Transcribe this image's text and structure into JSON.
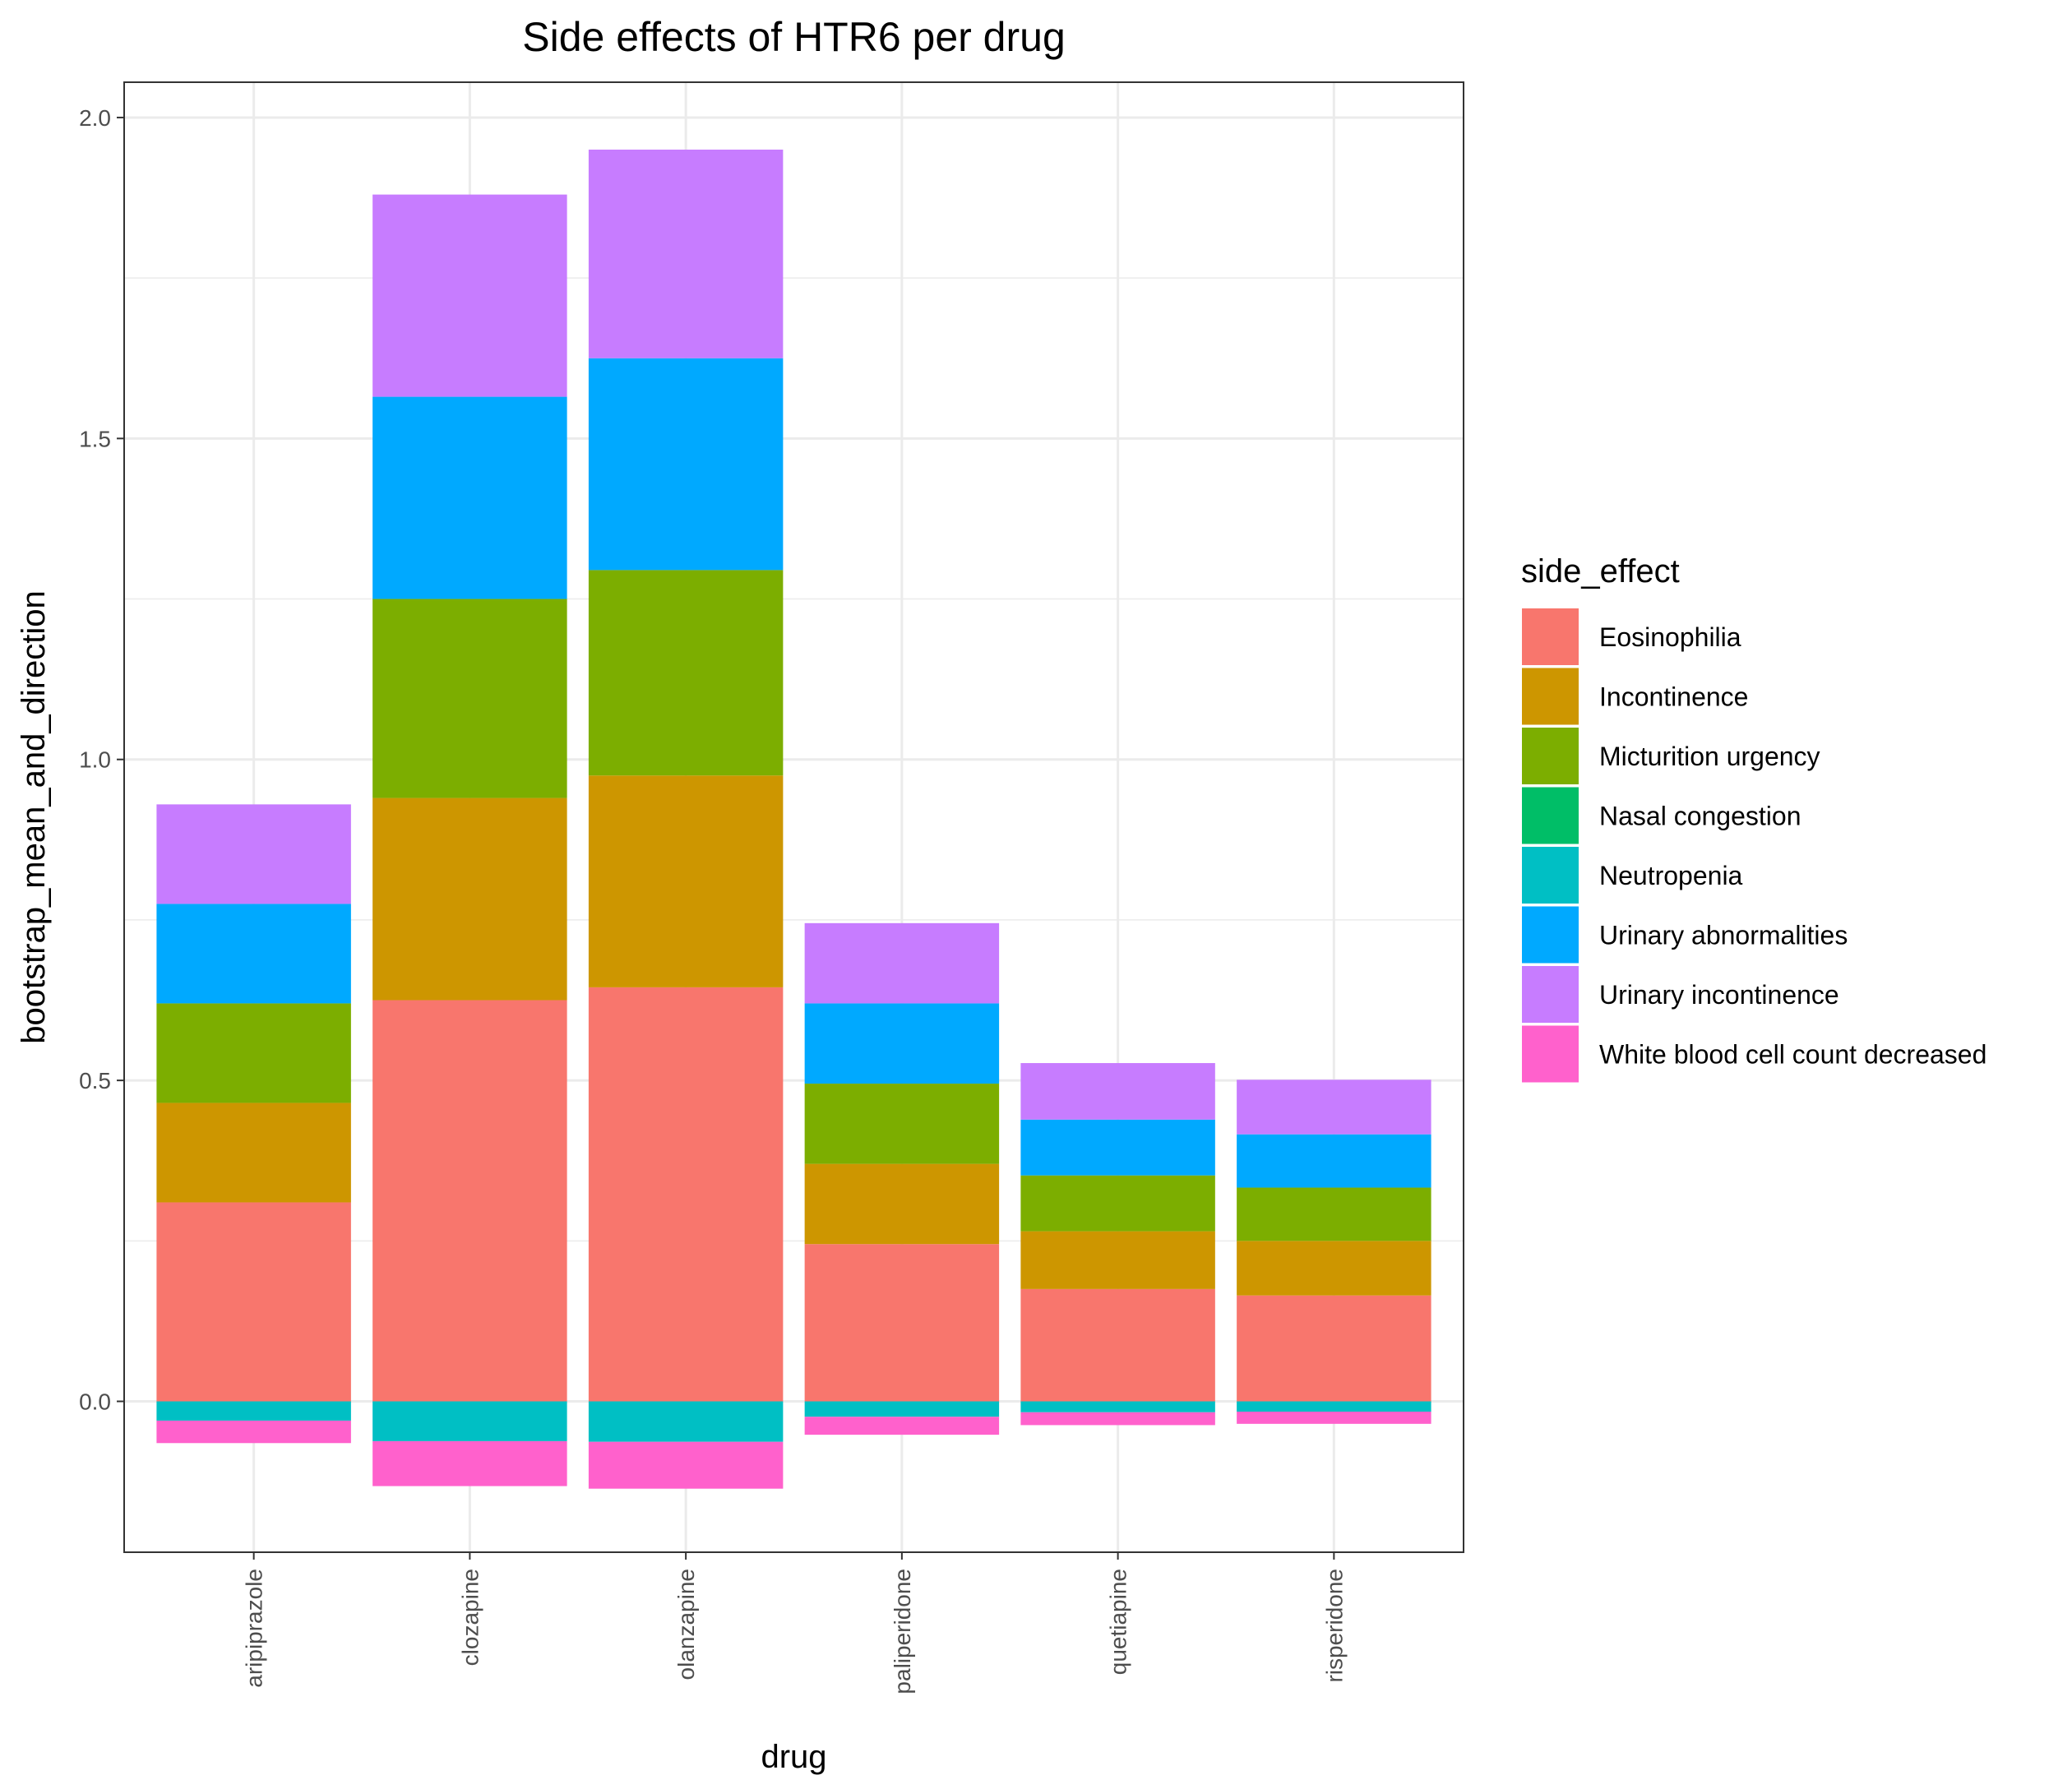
{
  "chart_data": {
    "type": "bar",
    "stacked": true,
    "title": "Side effects of HTR6 per drug",
    "xlabel": "drug",
    "ylabel": "bootstrap_mean_and_direction",
    "ylim": [
      -0.235,
      2.055
    ],
    "yticks": [
      0.0,
      0.5,
      1.0,
      1.5,
      2.0
    ],
    "ytick_labels": [
      "0.0",
      "0.5",
      "1.0",
      "1.5",
      "2.0"
    ],
    "grid": true,
    "legend_title": "side_effect",
    "legend_position": "right",
    "categories": [
      "aripiprazole",
      "clozapine",
      "olanzapine",
      "paliperidone",
      "quetiapine",
      "risperidone"
    ],
    "series": [
      {
        "name": "Eosinophilia",
        "color": "#F8766D",
        "values": [
          0.31,
          0.625,
          0.645,
          0.245,
          0.175,
          0.165
        ]
      },
      {
        "name": "Incontinence",
        "color": "#CD9600",
        "values": [
          0.155,
          0.315,
          0.33,
          0.125,
          0.09,
          0.085
        ]
      },
      {
        "name": "Micturition urgency",
        "color": "#7CAE00",
        "values": [
          0.155,
          0.31,
          0.32,
          0.125,
          0.087,
          0.083
        ]
      },
      {
        "name": "Nasal congestion",
        "color": "#00BE67",
        "values": [
          0,
          0,
          0,
          0,
          0,
          0
        ]
      },
      {
        "name": "Neutropenia",
        "color": "#00BFC4",
        "values": [
          -0.03,
          -0.062,
          -0.063,
          -0.024,
          -0.017,
          -0.016
        ]
      },
      {
        "name": "Urinary abnormalities",
        "color": "#00A9FF",
        "values": [
          0.155,
          0.315,
          0.33,
          0.125,
          0.087,
          0.083
        ]
      },
      {
        "name": "Urinary incontinence",
        "color": "#C77CFF",
        "values": [
          0.155,
          0.315,
          0.325,
          0.125,
          0.088,
          0.085
        ]
      },
      {
        "name": "White blood cell count decreased",
        "color": "#FF61CC",
        "values": [
          -0.035,
          -0.07,
          -0.073,
          -0.028,
          -0.02,
          -0.019
        ]
      }
    ]
  }
}
